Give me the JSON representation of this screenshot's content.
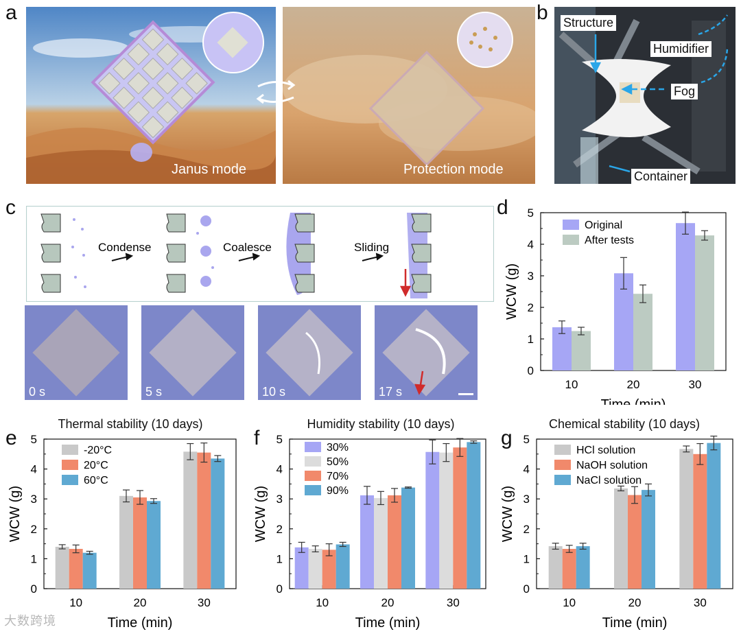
{
  "panels": {
    "a": {
      "letter": "a",
      "labels": [
        "Janus mode",
        "Protection mode"
      ]
    },
    "b": {
      "letter": "b",
      "labels": [
        "Structure",
        "Humidifier",
        "Fog",
        "Container"
      ]
    },
    "c": {
      "letter": "c",
      "steps": [
        "Condense",
        "Coalesce",
        "Sliding"
      ],
      "times": [
        "0 s",
        "5 s",
        "10 s",
        "17 s"
      ]
    }
  },
  "watermark": "大数跨境",
  "colors": {
    "purple": "#a6a6f5",
    "sage": "#bccbc2",
    "gray": "#c9c9c9",
    "orange": "#f1896b",
    "blue": "#5fa9d2",
    "lightgray": "#dcdcdc"
  },
  "chart_data": [
    {
      "panel": "d",
      "type": "bar",
      "title": "",
      "xlabel": "Time (min)",
      "ylabel": "WCW (g)",
      "ylim": [
        0,
        5
      ],
      "categories": [
        "10",
        "20",
        "30"
      ],
      "legend": "top-left",
      "series": [
        {
          "name": "Original",
          "values": [
            1.37,
            3.08,
            4.67
          ],
          "errors": [
            0.2,
            0.5,
            0.35
          ],
          "color": "#a6a6f5"
        },
        {
          "name": "After tests",
          "values": [
            1.25,
            2.43,
            4.28
          ],
          "errors": [
            0.12,
            0.28,
            0.15
          ],
          "color": "#bccbc2"
        }
      ]
    },
    {
      "panel": "e",
      "type": "bar",
      "title": "Thermal stability (10 days)",
      "xlabel": "Time (min)",
      "ylabel": "WCW (g)",
      "ylim": [
        0,
        5
      ],
      "categories": [
        "10",
        "20",
        "30"
      ],
      "legend": "top-left",
      "series": [
        {
          "name": "-20°C",
          "values": [
            1.4,
            3.1,
            4.58
          ],
          "errors": [
            0.07,
            0.2,
            0.27
          ],
          "color": "#c9c9c9"
        },
        {
          "name": "20°C",
          "values": [
            1.33,
            3.05,
            4.55
          ],
          "errors": [
            0.13,
            0.23,
            0.32
          ],
          "color": "#f1896b"
        },
        {
          "name": "60°C",
          "values": [
            1.2,
            2.93,
            4.35
          ],
          "errors": [
            0.05,
            0.08,
            0.1
          ],
          "color": "#5fa9d2"
        }
      ]
    },
    {
      "panel": "f",
      "type": "bar",
      "title": "Humidity stability (10 days)",
      "xlabel": "Time (min)",
      "ylabel": "WCW (g)",
      "ylim": [
        0,
        5
      ],
      "categories": [
        "10",
        "20",
        "30"
      ],
      "legend": "top-left",
      "series": [
        {
          "name": "30%",
          "values": [
            1.38,
            3.12,
            4.57
          ],
          "errors": [
            0.17,
            0.3,
            0.4
          ],
          "color": "#a6a6f5"
        },
        {
          "name": "50%",
          "values": [
            1.33,
            3.03,
            4.55
          ],
          "errors": [
            0.1,
            0.22,
            0.3
          ],
          "color": "#dcdcdc"
        },
        {
          "name": "70%",
          "values": [
            1.3,
            3.12,
            4.72
          ],
          "errors": [
            0.2,
            0.23,
            0.3
          ],
          "color": "#f1896b"
        },
        {
          "name": "90%",
          "values": [
            1.48,
            3.38,
            4.9
          ],
          "errors": [
            0.07,
            0.02,
            0.04
          ],
          "color": "#5fa9d2"
        }
      ]
    },
    {
      "panel": "g",
      "type": "bar",
      "title": "Chemical stability (10 days)",
      "xlabel": "Time (min)",
      "ylabel": "WCW (g)",
      "ylim": [
        0,
        5
      ],
      "categories": [
        "10",
        "20",
        "30"
      ],
      "legend": "top-left",
      "series": [
        {
          "name": "HCl solution",
          "values": [
            1.42,
            3.35,
            4.67
          ],
          "errors": [
            0.1,
            0.08,
            0.1
          ],
          "color": "#c9c9c9"
        },
        {
          "name": "NaOH solution",
          "values": [
            1.33,
            3.13,
            4.5
          ],
          "errors": [
            0.12,
            0.28,
            0.35
          ],
          "color": "#f1896b"
        },
        {
          "name": "NaCl solution",
          "values": [
            1.42,
            3.3,
            4.87
          ],
          "errors": [
            0.1,
            0.2,
            0.23
          ],
          "color": "#5fa9d2"
        }
      ]
    }
  ]
}
